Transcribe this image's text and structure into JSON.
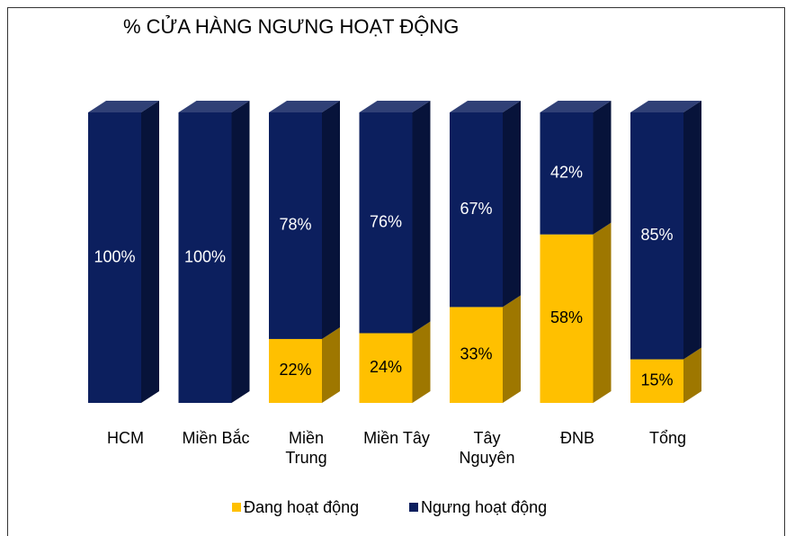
{
  "chart_data": {
    "type": "stacked_bar_3d",
    "title": "% CỬA HÀNG NGƯNG HOẠT ĐỘNG",
    "categories": [
      "HCM",
      "Miền Bắc",
      "Miền Trung",
      "Miền Tây",
      "Tây Nguyên",
      "ĐNB",
      "Tổng"
    ],
    "series": [
      {
        "name": "Đang hoạt động",
        "color": "#ffc000",
        "values": [
          0,
          0,
          22,
          24,
          33,
          58,
          15
        ],
        "value_labels": [
          null,
          null,
          "22%",
          "24%",
          "33%",
          "58%",
          "15%"
        ]
      },
      {
        "name": "Ngưng hoạt động",
        "color": "#0c1f5e",
        "values": [
          100,
          100,
          78,
          76,
          67,
          42,
          85
        ],
        "value_labels": [
          "100%",
          "100%",
          "78%",
          "76%",
          "67%",
          "42%",
          "85%"
        ]
      }
    ],
    "ylim": [
      0,
      100
    ],
    "legend": "bottom"
  }
}
